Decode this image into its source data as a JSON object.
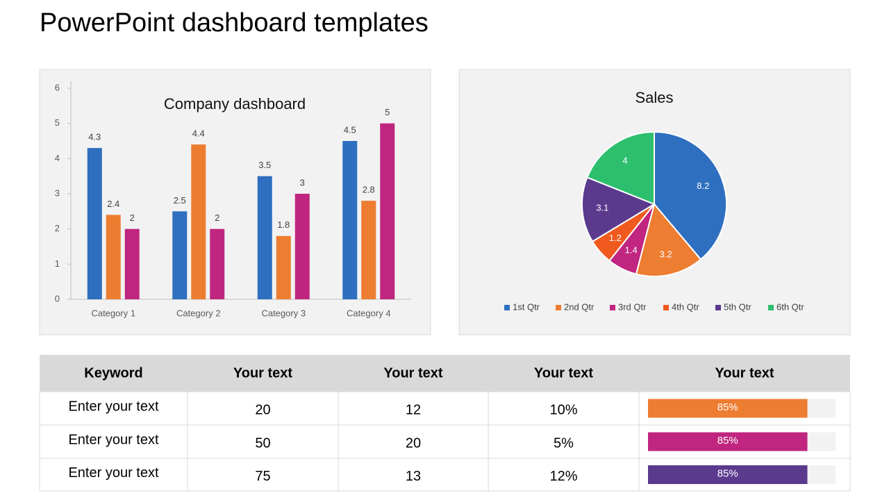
{
  "title": "PowerPoint dashboard templates",
  "chart_data": [
    {
      "type": "bar",
      "title": "Company dashboard",
      "categories": [
        "Category 1",
        "Category 2",
        "Category 3",
        "Category 4"
      ],
      "series": [
        {
          "color": "#2e6fc0",
          "values": [
            4.3,
            2.5,
            3.5,
            4.5
          ]
        },
        {
          "color": "#ed7d31",
          "values": [
            2.4,
            4.4,
            1.8,
            2.8
          ]
        },
        {
          "color": "#c0267f",
          "values": [
            2,
            2,
            3,
            5
          ]
        }
      ],
      "ylim": [
        0,
        6
      ],
      "yticks": [
        0,
        1,
        2,
        3,
        4,
        5,
        6
      ]
    },
    {
      "type": "pie",
      "title": "Sales",
      "categories": [
        "1st Qtr",
        "2nd Qtr",
        "3rd Qtr",
        "4th Qtr",
        "5th Qtr",
        "6th Qtr"
      ],
      "values": [
        8.2,
        3.2,
        1.4,
        1.2,
        3.1,
        4
      ],
      "colors": [
        "#2e6fc0",
        "#ed7d31",
        "#c0267f",
        "#f05a1e",
        "#5b3a8e",
        "#2dbf6e"
      ]
    }
  ],
  "table": {
    "header": [
      "Keyword",
      "Your text",
      "Your text",
      "Your text",
      "Your text"
    ],
    "rows": [
      [
        "Enter your text",
        20,
        12,
        "10%",
        {
          "value": 85,
          "label": "85%"
        }
      ],
      [
        "Enter your text",
        50,
        20,
        "5%",
        {
          "value": 85,
          "label": "85%"
        }
      ],
      [
        "Enter your text",
        75,
        13,
        "12%",
        {
          "value": 85,
          "label": "85%"
        }
      ]
    ],
    "bar_colors": [
      "#ed7d31",
      "#c0267f",
      "#5b3a8e"
    ]
  }
}
